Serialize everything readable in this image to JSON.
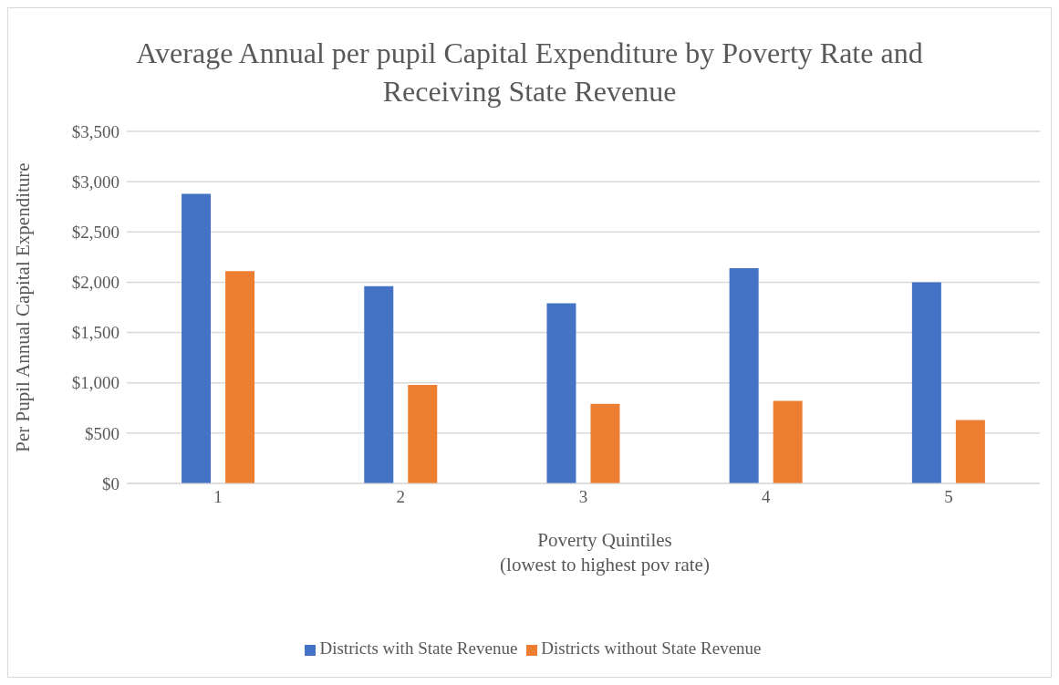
{
  "chart_data": {
    "type": "bar",
    "title": "Average Annual per pupil Capital Expenditure by Poverty Rate and Receiving State Revenue",
    "xlabel": "Poverty Quintiles\n(lowest to highest pov rate)",
    "ylabel": "Per Pupil Annual Capital Expenditure",
    "categories": [
      "1",
      "2",
      "3",
      "4",
      "5"
    ],
    "series": [
      {
        "name": "Districts with State Revenue",
        "color": "#4472c4",
        "values": [
          2880,
          1960,
          1790,
          2140,
          2000
        ]
      },
      {
        "name": "Districts without State Revenue",
        "color": "#ed7d31",
        "values": [
          2110,
          980,
          790,
          820,
          630
        ]
      }
    ],
    "ylim": [
      0,
      3500
    ],
    "yticks": [
      {
        "value": 0,
        "label": "$0"
      },
      {
        "value": 500,
        "label": "$500"
      },
      {
        "value": 1000,
        "label": "$1,000"
      },
      {
        "value": 1500,
        "label": "$1,500"
      },
      {
        "value": 2000,
        "label": "$2,000"
      },
      {
        "value": 2500,
        "label": "$2,500"
      },
      {
        "value": 3000,
        "label": "$3,000"
      },
      {
        "value": 3500,
        "label": "$3,500"
      }
    ],
    "grid": "y",
    "legend": "bottom"
  }
}
